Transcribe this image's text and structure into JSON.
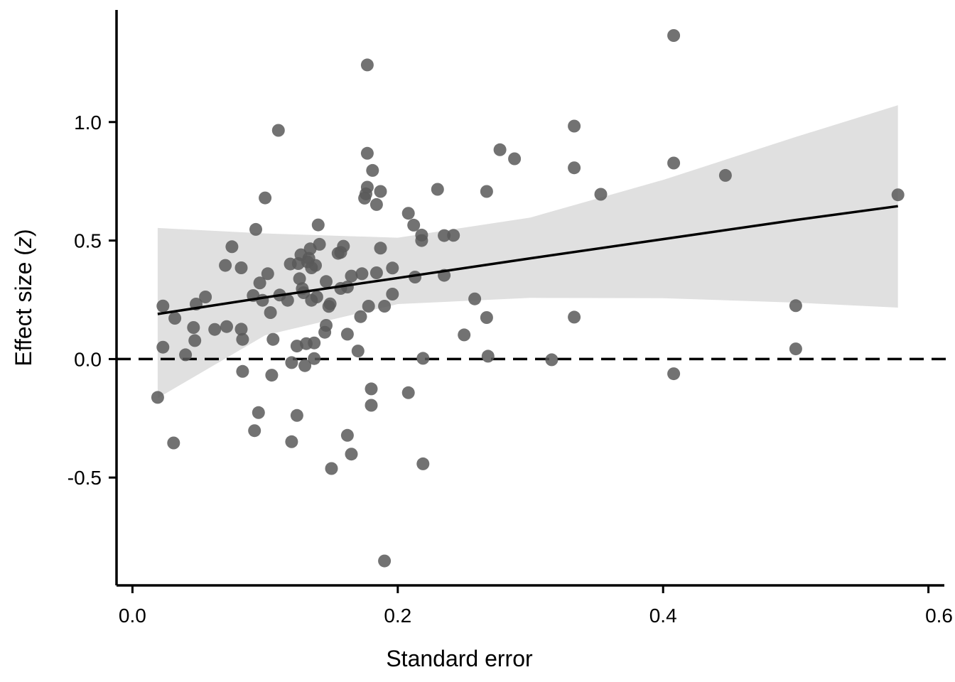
{
  "chart_data": {
    "type": "scatter",
    "title": "",
    "xlabel": "Standard error",
    "ylabel": "Effect size (",
    "ylabel_italic": "z",
    "ylabel_close": ")",
    "xlim": [
      -0.012,
      0.612
    ],
    "ylim": [
      -0.955,
      1.473
    ],
    "xticks": [
      0.0,
      0.2,
      0.4,
      0.6
    ],
    "xtick_labels": [
      "0.0",
      "0.2",
      "0.4",
      "0.6"
    ],
    "yticks": [
      -0.5,
      0.0,
      0.5,
      1.0
    ],
    "ytick_labels": [
      "-0.5",
      "0.0",
      "0.5",
      "1.0"
    ],
    "grid": false,
    "point_color": "#595959",
    "line_color": "#000000",
    "band_color": "#e0e0e0",
    "reference_line": {
      "y": 0,
      "style": "dashed",
      "color": "#000000"
    },
    "fit": {
      "x": [
        0.019,
        0.1,
        0.2,
        0.3,
        0.4,
        0.5,
        0.577
      ],
      "y": [
        0.19,
        0.26,
        0.342,
        0.425,
        0.506,
        0.587,
        0.645
      ],
      "lower": [
        -0.165,
        0.1,
        0.232,
        0.258,
        0.257,
        0.238,
        0.217
      ],
      "upper": [
        0.553,
        0.53,
        0.512,
        0.597,
        0.756,
        0.937,
        1.071
      ]
    },
    "points": [
      {
        "x": 0.019,
        "y": -0.162
      },
      {
        "x": 0.023,
        "y": 0.224
      },
      {
        "x": 0.023,
        "y": 0.05
      },
      {
        "x": 0.031,
        "y": -0.354
      },
      {
        "x": 0.032,
        "y": 0.172
      },
      {
        "x": 0.04,
        "y": 0.018
      },
      {
        "x": 0.046,
        "y": 0.133
      },
      {
        "x": 0.047,
        "y": 0.078
      },
      {
        "x": 0.048,
        "y": 0.232
      },
      {
        "x": 0.055,
        "y": 0.262
      },
      {
        "x": 0.062,
        "y": 0.125
      },
      {
        "x": 0.07,
        "y": 0.395
      },
      {
        "x": 0.071,
        "y": 0.137
      },
      {
        "x": 0.075,
        "y": 0.474
      },
      {
        "x": 0.082,
        "y": 0.385
      },
      {
        "x": 0.082,
        "y": 0.126
      },
      {
        "x": 0.083,
        "y": 0.083
      },
      {
        "x": 0.083,
        "y": -0.052
      },
      {
        "x": 0.091,
        "y": 0.268
      },
      {
        "x": 0.092,
        "y": -0.302
      },
      {
        "x": 0.093,
        "y": 0.547
      },
      {
        "x": 0.095,
        "y": -0.226
      },
      {
        "x": 0.096,
        "y": 0.321
      },
      {
        "x": 0.098,
        "y": 0.248
      },
      {
        "x": 0.1,
        "y": 0.68
      },
      {
        "x": 0.102,
        "y": 0.36
      },
      {
        "x": 0.104,
        "y": 0.196
      },
      {
        "x": 0.105,
        "y": -0.068
      },
      {
        "x": 0.106,
        "y": 0.083
      },
      {
        "x": 0.11,
        "y": 0.965
      },
      {
        "x": 0.111,
        "y": 0.27
      },
      {
        "x": 0.117,
        "y": 0.248
      },
      {
        "x": 0.119,
        "y": 0.401
      },
      {
        "x": 0.12,
        "y": -0.015
      },
      {
        "x": 0.12,
        "y": -0.349
      },
      {
        "x": 0.124,
        "y": -0.238
      },
      {
        "x": 0.124,
        "y": 0.055
      },
      {
        "x": 0.125,
        "y": 0.403
      },
      {
        "x": 0.126,
        "y": 0.339
      },
      {
        "x": 0.127,
        "y": 0.44
      },
      {
        "x": 0.128,
        "y": 0.297
      },
      {
        "x": 0.129,
        "y": 0.28
      },
      {
        "x": 0.13,
        "y": -0.028
      },
      {
        "x": 0.131,
        "y": 0.065
      },
      {
        "x": 0.132,
        "y": 0.41
      },
      {
        "x": 0.133,
        "y": 0.425
      },
      {
        "x": 0.134,
        "y": 0.465
      },
      {
        "x": 0.135,
        "y": 0.385
      },
      {
        "x": 0.135,
        "y": 0.248
      },
      {
        "x": 0.137,
        "y": 0.068
      },
      {
        "x": 0.137,
        "y": 0.002
      },
      {
        "x": 0.138,
        "y": 0.395
      },
      {
        "x": 0.139,
        "y": 0.262
      },
      {
        "x": 0.14,
        "y": 0.566
      },
      {
        "x": 0.141,
        "y": 0.484
      },
      {
        "x": 0.145,
        "y": 0.113
      },
      {
        "x": 0.146,
        "y": 0.142
      },
      {
        "x": 0.146,
        "y": 0.327
      },
      {
        "x": 0.148,
        "y": 0.222
      },
      {
        "x": 0.149,
        "y": 0.233
      },
      {
        "x": 0.15,
        "y": -0.462
      },
      {
        "x": 0.155,
        "y": 0.446
      },
      {
        "x": 0.157,
        "y": 0.298
      },
      {
        "x": 0.157,
        "y": 0.45
      },
      {
        "x": 0.159,
        "y": 0.476
      },
      {
        "x": 0.162,
        "y": 0.304
      },
      {
        "x": 0.162,
        "y": -0.322
      },
      {
        "x": 0.162,
        "y": 0.105
      },
      {
        "x": 0.165,
        "y": 0.35
      },
      {
        "x": 0.165,
        "y": -0.401
      },
      {
        "x": 0.17,
        "y": 0.034
      },
      {
        "x": 0.172,
        "y": 0.179
      },
      {
        "x": 0.173,
        "y": 0.36
      },
      {
        "x": 0.175,
        "y": 0.679
      },
      {
        "x": 0.176,
        "y": 0.697
      },
      {
        "x": 0.177,
        "y": 0.725
      },
      {
        "x": 0.177,
        "y": 0.868
      },
      {
        "x": 0.177,
        "y": 1.241
      },
      {
        "x": 0.178,
        "y": 0.223
      },
      {
        "x": 0.18,
        "y": -0.195
      },
      {
        "x": 0.18,
        "y": -0.126
      },
      {
        "x": 0.181,
        "y": 0.796
      },
      {
        "x": 0.184,
        "y": 0.652
      },
      {
        "x": 0.184,
        "y": 0.364
      },
      {
        "x": 0.187,
        "y": 0.468
      },
      {
        "x": 0.187,
        "y": 0.707
      },
      {
        "x": 0.19,
        "y": 0.223
      },
      {
        "x": 0.19,
        "y": -0.852
      },
      {
        "x": 0.196,
        "y": 0.384
      },
      {
        "x": 0.196,
        "y": 0.274
      },
      {
        "x": 0.208,
        "y": 0.615
      },
      {
        "x": 0.208,
        "y": -0.142
      },
      {
        "x": 0.212,
        "y": 0.565
      },
      {
        "x": 0.213,
        "y": 0.346
      },
      {
        "x": 0.218,
        "y": 0.5
      },
      {
        "x": 0.218,
        "y": 0.523
      },
      {
        "x": 0.219,
        "y": 0.003
      },
      {
        "x": 0.219,
        "y": -0.442
      },
      {
        "x": 0.23,
        "y": 0.716
      },
      {
        "x": 0.235,
        "y": 0.521
      },
      {
        "x": 0.235,
        "y": 0.353
      },
      {
        "x": 0.242,
        "y": 0.522
      },
      {
        "x": 0.25,
        "y": 0.102
      },
      {
        "x": 0.258,
        "y": 0.254
      },
      {
        "x": 0.267,
        "y": 0.707
      },
      {
        "x": 0.267,
        "y": 0.175
      },
      {
        "x": 0.268,
        "y": 0.012
      },
      {
        "x": 0.277,
        "y": 0.883
      },
      {
        "x": 0.288,
        "y": 0.845
      },
      {
        "x": 0.316,
        "y": -0.003
      },
      {
        "x": 0.333,
        "y": 0.983
      },
      {
        "x": 0.333,
        "y": 0.807
      },
      {
        "x": 0.333,
        "y": 0.177
      },
      {
        "x": 0.353,
        "y": 0.695
      },
      {
        "x": 0.408,
        "y": 1.365
      },
      {
        "x": 0.408,
        "y": 0.827
      },
      {
        "x": 0.408,
        "y": -0.062
      },
      {
        "x": 0.447,
        "y": 0.775
      },
      {
        "x": 0.5,
        "y": 0.225
      },
      {
        "x": 0.5,
        "y": 0.043
      },
      {
        "x": 0.577,
        "y": 0.693
      }
    ]
  }
}
